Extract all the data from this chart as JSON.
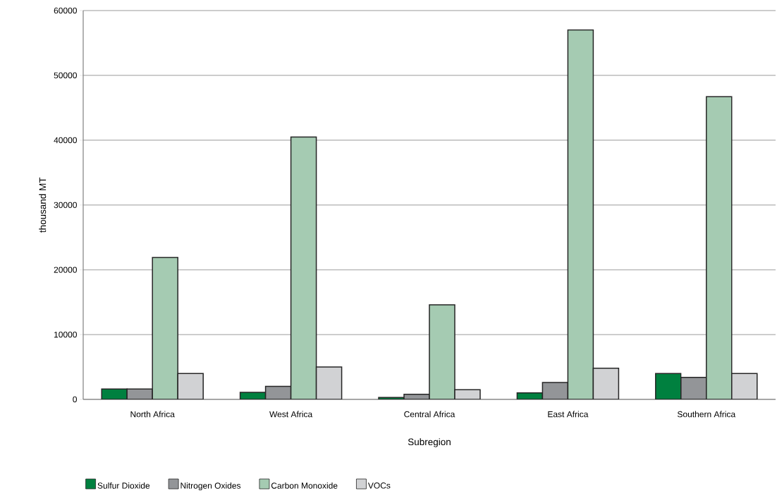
{
  "chart_data": {
    "type": "bar",
    "xlabel": "Subregion",
    "ylabel": "thousand MT",
    "categories": [
      "North Africa",
      "West Africa",
      "Central Africa",
      "East Africa",
      "Southern Africa"
    ],
    "series": [
      {
        "name": "Sulfur Dioxide",
        "color": "#00803f",
        "values": [
          1600,
          1100,
          300,
          1000,
          4000
        ]
      },
      {
        "name": "Nitrogen Oxides",
        "color": "#939598",
        "values": [
          1600,
          2000,
          800,
          2600,
          3400
        ]
      },
      {
        "name": "Carbon Monoxide",
        "color": "#a5cbb2",
        "values": [
          21900,
          40500,
          14600,
          57000,
          46700
        ]
      },
      {
        "name": "VOCs",
        "color": "#d1d2d4",
        "values": [
          4000,
          5000,
          1500,
          4800,
          4000
        ]
      }
    ],
    "ylim": [
      0,
      60000
    ],
    "yticks": [
      0,
      10000,
      20000,
      30000,
      40000,
      50000,
      60000
    ],
    "grid": "y",
    "legend": "bottom"
  }
}
